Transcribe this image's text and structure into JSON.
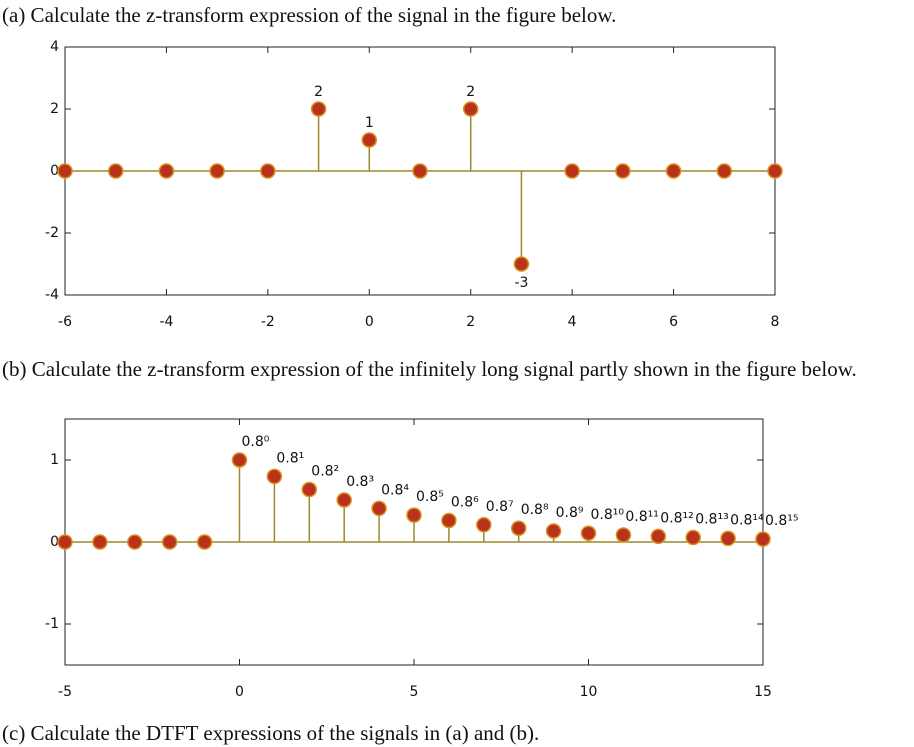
{
  "questions": [
    "(a) Calculate the z-transform expression of the signal in the figure below.",
    "(b) Calculate the z-transform expression of the infinitely long signal partly shown in the figure below.",
    "(c) Calculate the DTFT expressions of the signals in (a) and (b)."
  ],
  "chart_data": [
    {
      "type": "stem",
      "x": [
        -6,
        -5,
        -4,
        -3,
        -2,
        -1,
        0,
        1,
        2,
        3,
        4,
        5,
        6,
        7,
        8
      ],
      "values": [
        0,
        0,
        0,
        0,
        0,
        2,
        1,
        0,
        2,
        -3,
        0,
        0,
        0,
        0,
        0
      ],
      "value_labels": [
        null,
        null,
        null,
        null,
        null,
        "2",
        "1",
        null,
        "2",
        "-3",
        null,
        null,
        null,
        null,
        null
      ],
      "xlim": [
        -6,
        8
      ],
      "ylim": [
        -4,
        4
      ],
      "xticks": [
        -6,
        -4,
        -2,
        0,
        2,
        4,
        6,
        8
      ],
      "yticks": [
        -4,
        -2,
        0,
        2,
        4
      ],
      "marker_color": "#b8321c",
      "marker_edge_color": "#d9901e",
      "stem_color": "#9c8a2e"
    },
    {
      "type": "stem",
      "x": [
        -5,
        -4,
        -3,
        -2,
        -1,
        0,
        1,
        2,
        3,
        4,
        5,
        6,
        7,
        8,
        9,
        10,
        11,
        12,
        13,
        14,
        15
      ],
      "values": [
        0,
        0,
        0,
        0,
        0,
        1,
        0.8,
        0.64,
        0.512,
        0.4096,
        0.32768,
        0.262144,
        0.2097152,
        0.16777216,
        0.134217728,
        0.1073741824,
        0.08589934592,
        0.068719476736,
        0.0549755813888,
        0.04398046511104,
        0.035184372088832
      ],
      "value_labels": [
        null,
        null,
        null,
        null,
        null,
        "0.8⁰",
        "0.8¹",
        "0.8²",
        "0.8³",
        "0.8⁴",
        "0.8⁵",
        "0.8⁶",
        "0.8⁷",
        "0.8⁸",
        "0.8⁹",
        "0.8¹⁰",
        "0.8¹¹",
        "0.8¹²",
        "0.8¹³",
        "0.8¹⁴",
        "0.8¹⁵"
      ],
      "xlim": [
        -5,
        15
      ],
      "ylim": [
        -1.5,
        1.5
      ],
      "xticks": [
        -5,
        0,
        5,
        10,
        15
      ],
      "yticks": [
        -1,
        0,
        1
      ],
      "marker_color": "#b8321c",
      "marker_edge_color": "#d9901e",
      "stem_color": "#9c8a2e"
    }
  ]
}
